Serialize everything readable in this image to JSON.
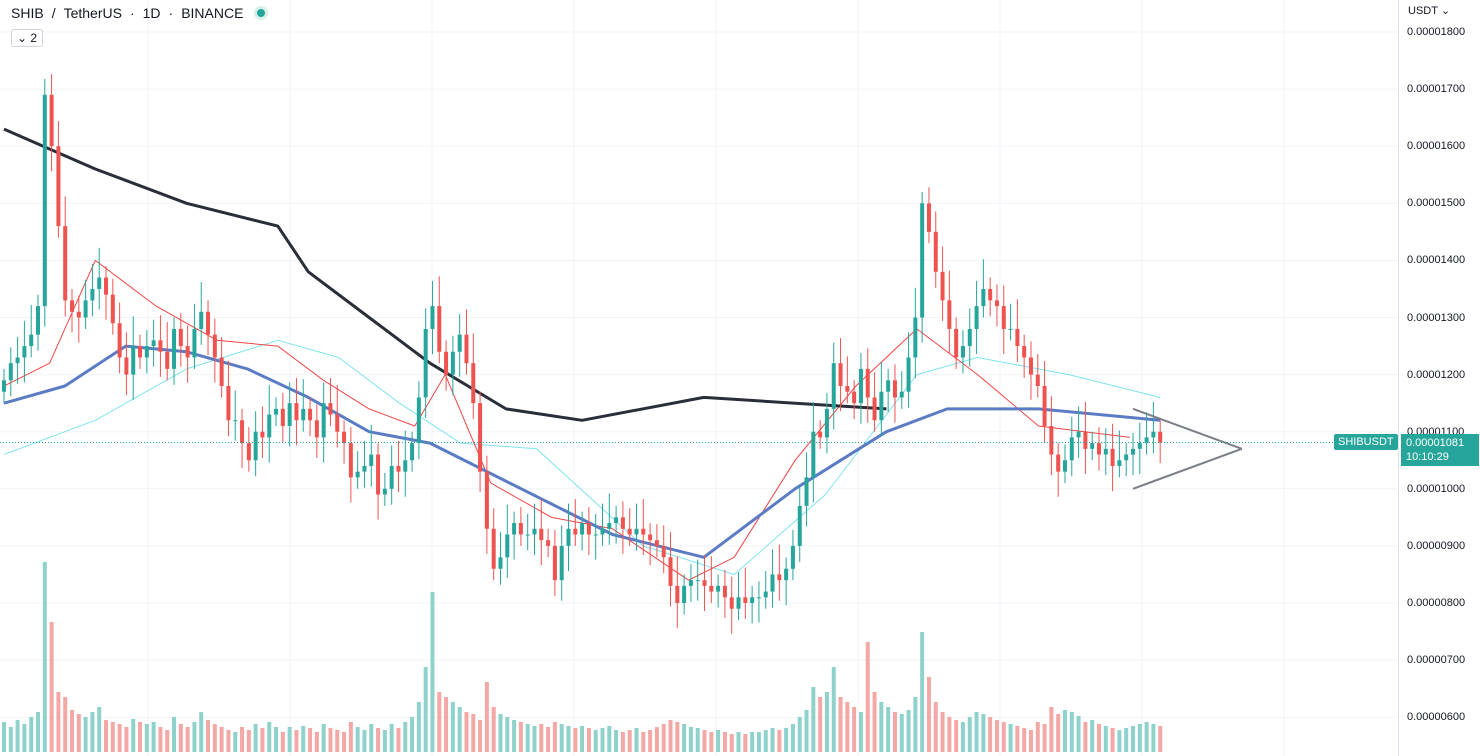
{
  "header": {
    "symbol": "SHIB",
    "separator": "/",
    "quote": "TetherUS",
    "interval": "1D",
    "exchange": "BINANCE",
    "dot": "·",
    "indicator_count": "2",
    "currency": "USDT"
  },
  "price_tag": {
    "symbol_label": "SHIBUSDT",
    "price": "0.00001081",
    "countdown": "10:10:29"
  },
  "colors": {
    "up": "#26a69a",
    "down": "#ef5350",
    "ma200": "#2a2e39",
    "ma50": "#5b7cc4",
    "bb": "#7fe3f0",
    "ema": "#ef4444",
    "volume_up": "#8fd2cb",
    "volume_down": "#f3a8a6",
    "triangle": "#7a7e88"
  },
  "chart_data": {
    "type": "candlestick",
    "ylim": [
      5.5e-06,
      1.85e-05
    ],
    "yticks": [
      "0.00001800",
      "0.00001700",
      "0.00001600",
      "0.00001500",
      "0.00001400",
      "0.00001300",
      "0.00001200",
      "0.00001100",
      "0.00001000",
      "0.00000900",
      "0.00000800",
      "0.00000700",
      "0.00000600"
    ],
    "ytick_values": [
      1.8e-05,
      1.7e-05,
      1.6e-05,
      1.5e-05,
      1.4e-05,
      1.3e-05,
      1.2e-05,
      1.1e-05,
      1e-05,
      9e-06,
      8e-06,
      7e-06,
      6e-06
    ],
    "current_price": 1.081e-05,
    "close": [
      1.19,
      1.22,
      1.23,
      1.25,
      1.27,
      1.32,
      1.69,
      1.6,
      1.46,
      1.33,
      1.31,
      1.3,
      1.33,
      1.35,
      1.37,
      1.34,
      1.29,
      1.23,
      1.2,
      1.25,
      1.23,
      1.25,
      1.26,
      1.24,
      1.21,
      1.28,
      1.25,
      1.23,
      1.28,
      1.31,
      1.27,
      1.23,
      1.18,
      1.12,
      1.12,
      1.08,
      1.05,
      1.1,
      1.09,
      1.13,
      1.14,
      1.11,
      1.15,
      1.12,
      1.14,
      1.12,
      1.09,
      1.15,
      1.13,
      1.1,
      1.08,
      1.02,
      1.03,
      1.04,
      1.06,
      0.99,
      1.0,
      1.04,
      1.03,
      1.05,
      1.08,
      1.16,
      1.28,
      1.32,
      1.24,
      1.2,
      1.24,
      1.27,
      1.22,
      1.15,
      1.03,
      0.93,
      0.86,
      0.88,
      0.92,
      0.94,
      0.92,
      0.92,
      0.93,
      0.91,
      0.9,
      0.84,
      0.9,
      0.93,
      0.92,
      0.94,
      0.92,
      0.92,
      0.93,
      0.94,
      0.95,
      0.93,
      0.92,
      0.93,
      0.92,
      0.91,
      0.9,
      0.88,
      0.83,
      0.8,
      0.83,
      0.84,
      0.84,
      0.83,
      0.82,
      0.83,
      0.81,
      0.79,
      0.81,
      0.8,
      0.81,
      0.81,
      0.82,
      0.85,
      0.84,
      0.86,
      0.9,
      0.97,
      1.02,
      1.1,
      1.09,
      1.14,
      1.22,
      1.18,
      1.17,
      1.15,
      1.21,
      1.16,
      1.12,
      1.17,
      1.19,
      1.16,
      1.17,
      1.23,
      1.3,
      1.5,
      1.45,
      1.38,
      1.33,
      1.28,
      1.23,
      1.25,
      1.28,
      1.32,
      1.35,
      1.33,
      1.32,
      1.28,
      1.28,
      1.25,
      1.23,
      1.2,
      1.18,
      1.11,
      1.06,
      1.03,
      1.05,
      1.09,
      1.1,
      1.07,
      1.08,
      1.06,
      1.07,
      1.04,
      1.05,
      1.06,
      1.07,
      1.08,
      1.09,
      1.1,
      1.081
    ],
    "volume": [
      0.3,
      0.25,
      0.32,
      0.28,
      0.35,
      0.4,
      1.9,
      1.3,
      0.6,
      0.55,
      0.42,
      0.38,
      0.35,
      0.4,
      0.45,
      0.32,
      0.3,
      0.28,
      0.25,
      0.33,
      0.3,
      0.28,
      0.3,
      0.25,
      0.22,
      0.35,
      0.28,
      0.25,
      0.3,
      0.4,
      0.32,
      0.28,
      0.25,
      0.22,
      0.2,
      0.25,
      0.22,
      0.28,
      0.24,
      0.3,
      0.25,
      0.2,
      0.25,
      0.22,
      0.26,
      0.24,
      0.2,
      0.28,
      0.24,
      0.22,
      0.2,
      0.3,
      0.25,
      0.22,
      0.28,
      0.24,
      0.22,
      0.28,
      0.24,
      0.3,
      0.35,
      0.5,
      0.85,
      1.6,
      0.6,
      0.55,
      0.5,
      0.45,
      0.4,
      0.38,
      0.32,
      0.7,
      0.45,
      0.38,
      0.35,
      0.32,
      0.3,
      0.28,
      0.26,
      0.28,
      0.25,
      0.3,
      0.28,
      0.26,
      0.24,
      0.26,
      0.24,
      0.22,
      0.24,
      0.26,
      0.22,
      0.2,
      0.22,
      0.24,
      0.2,
      0.22,
      0.25,
      0.28,
      0.32,
      0.3,
      0.28,
      0.25,
      0.24,
      0.22,
      0.2,
      0.22,
      0.2,
      0.18,
      0.2,
      0.18,
      0.2,
      0.2,
      0.22,
      0.24,
      0.22,
      0.24,
      0.28,
      0.35,
      0.42,
      0.65,
      0.55,
      0.6,
      0.85,
      0.55,
      0.5,
      0.45,
      0.4,
      1.1,
      0.6,
      0.5,
      0.45,
      0.4,
      0.38,
      0.42,
      0.55,
      1.2,
      0.75,
      0.5,
      0.4,
      0.35,
      0.32,
      0.3,
      0.35,
      0.4,
      0.38,
      0.35,
      0.32,
      0.3,
      0.28,
      0.26,
      0.24,
      0.22,
      0.3,
      0.28,
      0.45,
      0.38,
      0.42,
      0.4,
      0.36,
      0.3,
      0.32,
      0.28,
      0.26,
      0.24,
      0.22,
      0.24,
      0.26,
      0.28,
      0.3,
      0.28,
      0.26
    ],
    "volume_scale_max": 1.9,
    "ma200_points": [
      [
        0,
        1.63
      ],
      [
        30,
        1.56
      ],
      [
        60,
        1.5
      ],
      [
        90,
        1.46
      ],
      [
        100,
        1.38
      ],
      [
        120,
        1.3
      ],
      [
        140,
        1.22
      ],
      [
        165,
        1.14
      ],
      [
        190,
        1.12
      ],
      [
        230,
        1.16
      ],
      [
        260,
        1.15
      ],
      [
        290,
        1.14
      ]
    ],
    "ma50_points": [
      [
        0,
        1.15
      ],
      [
        20,
        1.18
      ],
      [
        40,
        1.25
      ],
      [
        60,
        1.24
      ],
      [
        80,
        1.21
      ],
      [
        100,
        1.16
      ],
      [
        120,
        1.1
      ],
      [
        140,
        1.08
      ],
      [
        170,
        1.0
      ],
      [
        200,
        0.92
      ],
      [
        230,
        0.88
      ],
      [
        260,
        1.0
      ],
      [
        290,
        1.1
      ],
      [
        310,
        1.14
      ],
      [
        340,
        1.14
      ],
      [
        380,
        1.12
      ]
    ],
    "bb_points": [
      [
        0,
        1.06
      ],
      [
        30,
        1.12
      ],
      [
        60,
        1.21
      ],
      [
        90,
        1.26
      ],
      [
        110,
        1.23
      ],
      [
        130,
        1.15
      ],
      [
        150,
        1.08
      ],
      [
        175,
        1.07
      ],
      [
        210,
        0.9
      ],
      [
        240,
        0.85
      ],
      [
        270,
        0.99
      ],
      [
        300,
        1.2
      ],
      [
        320,
        1.23
      ],
      [
        350,
        1.2
      ],
      [
        380,
        1.16
      ]
    ],
    "ema_points": [
      [
        0,
        1.18
      ],
      [
        15,
        1.22
      ],
      [
        30,
        1.4
      ],
      [
        50,
        1.32
      ],
      [
        70,
        1.26
      ],
      [
        90,
        1.25
      ],
      [
        105,
        1.19
      ],
      [
        120,
        1.14
      ],
      [
        135,
        1.11
      ],
      [
        145,
        1.2
      ],
      [
        160,
        1.01
      ],
      [
        180,
        0.95
      ],
      [
        200,
        0.93
      ],
      [
        225,
        0.84
      ],
      [
        240,
        0.88
      ],
      [
        260,
        1.05
      ],
      [
        280,
        1.18
      ],
      [
        300,
        1.28
      ],
      [
        320,
        1.2
      ],
      [
        340,
        1.11
      ],
      [
        370,
        1.09
      ]
    ],
    "triangle_lines": [
      [
        [
          166,
          1.0
        ],
        [
          182,
          1.07
        ]
      ],
      [
        [
          166,
          1.14
        ],
        [
          182,
          1.07
        ]
      ]
    ]
  }
}
